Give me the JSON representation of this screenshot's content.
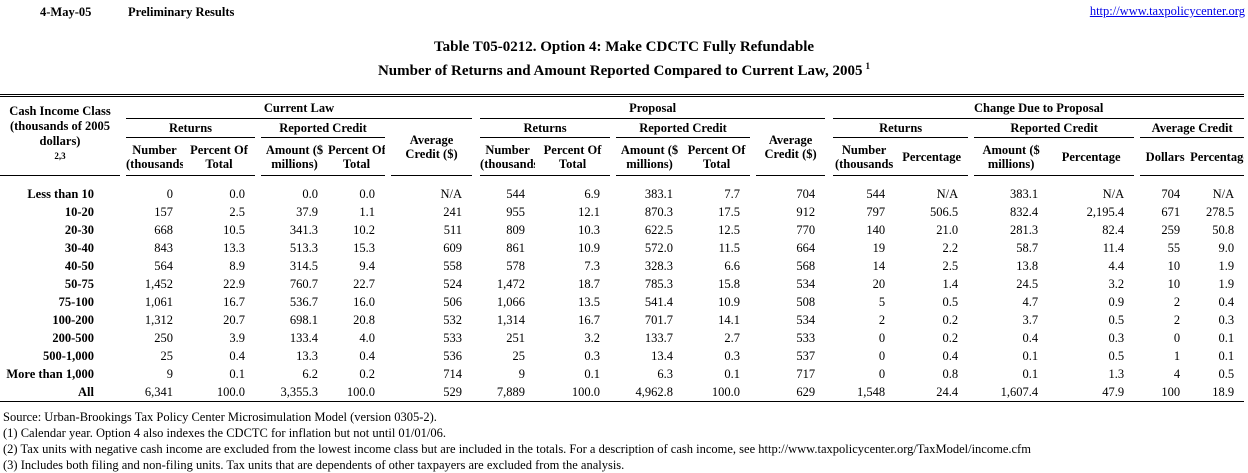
{
  "header": {
    "date": "4-May-05",
    "status": "Preliminary Results",
    "url": "http://www.taxpolicycenter.org",
    "link_color": "#0000e6"
  },
  "title": {
    "line1": "Table T05-0212. Option 4: Make CDCTC Fully Refundable",
    "line2": "Number of Returns and Amount Reported Compared to Current Law, 2005",
    "line2_sup": "1"
  },
  "table": {
    "corner": {
      "l1": "Cash Income Class",
      "l2": "(thousands of 2005",
      "l3": "dollars)",
      "sup": "2,3"
    },
    "groups": [
      {
        "name": "Current Law"
      },
      {
        "name": "Proposal"
      },
      {
        "name": "Change Due to Proposal"
      }
    ],
    "labels": {
      "returns": "Returns",
      "reported_credit": "Reported Credit",
      "average_l1": "Average",
      "average_l2": "Credit ($)",
      "average_change": "Average Credit"
    },
    "cols": {
      "number_l1": "Number",
      "number_l2": "(thousands",
      "pct_of_l1": "Percent Of",
      "pct_of_l2": "Total",
      "amount_l1": "Amount ($",
      "amount_l2": "millions)",
      "percentage": "Percentage",
      "dollars": "Dollars"
    },
    "rows": [
      {
        "label": "Less than 10",
        "values": [
          "0",
          "0.0",
          "0.0",
          "0.0",
          "N/A",
          "544",
          "6.9",
          "383.1",
          "7.7",
          "704",
          "544",
          "N/A",
          "383.1",
          "N/A",
          "704",
          "N/A"
        ]
      },
      {
        "label": "10-20",
        "values": [
          "157",
          "2.5",
          "37.9",
          "1.1",
          "241",
          "955",
          "12.1",
          "870.3",
          "17.5",
          "912",
          "797",
          "506.5",
          "832.4",
          "2,195.4",
          "671",
          "278.5"
        ]
      },
      {
        "label": "20-30",
        "values": [
          "668",
          "10.5",
          "341.3",
          "10.2",
          "511",
          "809",
          "10.3",
          "622.5",
          "12.5",
          "770",
          "140",
          "21.0",
          "281.3",
          "82.4",
          "259",
          "50.8"
        ]
      },
      {
        "label": "30-40",
        "values": [
          "843",
          "13.3",
          "513.3",
          "15.3",
          "609",
          "861",
          "10.9",
          "572.0",
          "11.5",
          "664",
          "19",
          "2.2",
          "58.7",
          "11.4",
          "55",
          "9.0"
        ]
      },
      {
        "label": "40-50",
        "values": [
          "564",
          "8.9",
          "314.5",
          "9.4",
          "558",
          "578",
          "7.3",
          "328.3",
          "6.6",
          "568",
          "14",
          "2.5",
          "13.8",
          "4.4",
          "10",
          "1.9"
        ]
      },
      {
        "label": "50-75",
        "values": [
          "1,452",
          "22.9",
          "760.7",
          "22.7",
          "524",
          "1,472",
          "18.7",
          "785.3",
          "15.8",
          "534",
          "20",
          "1.4",
          "24.5",
          "3.2",
          "10",
          "1.9"
        ]
      },
      {
        "label": "75-100",
        "values": [
          "1,061",
          "16.7",
          "536.7",
          "16.0",
          "506",
          "1,066",
          "13.5",
          "541.4",
          "10.9",
          "508",
          "5",
          "0.5",
          "4.7",
          "0.9",
          "2",
          "0.4"
        ]
      },
      {
        "label": "100-200",
        "values": [
          "1,312",
          "20.7",
          "698.1",
          "20.8",
          "532",
          "1,314",
          "16.7",
          "701.7",
          "14.1",
          "534",
          "2",
          "0.2",
          "3.7",
          "0.5",
          "2",
          "0.3"
        ]
      },
      {
        "label": "200-500",
        "values": [
          "250",
          "3.9",
          "133.4",
          "4.0",
          "533",
          "251",
          "3.2",
          "133.7",
          "2.7",
          "533",
          "0",
          "0.2",
          "0.4",
          "0.3",
          "0",
          "0.1"
        ]
      },
      {
        "label": "500-1,000",
        "values": [
          "25",
          "0.4",
          "13.3",
          "0.4",
          "536",
          "25",
          "0.3",
          "13.4",
          "0.3",
          "537",
          "0",
          "0.4",
          "0.1",
          "0.5",
          "1",
          "0.1"
        ]
      },
      {
        "label": "More than 1,000",
        "values": [
          "9",
          "0.1",
          "6.2",
          "0.2",
          "714",
          "9",
          "0.1",
          "6.3",
          "0.1",
          "717",
          "0",
          "0.8",
          "0.1",
          "1.3",
          "4",
          "0.5"
        ]
      },
      {
        "label": "All",
        "values": [
          "6,341",
          "100.0",
          "3,355.3",
          "100.0",
          "529",
          "7,889",
          "100.0",
          "4,962.8",
          "100.0",
          "629",
          "1,548",
          "24.4",
          "1,607.4",
          "47.9",
          "100",
          "18.9"
        ]
      }
    ]
  },
  "footnotes": {
    "source": "Source: Urban-Brookings Tax Policy Center Microsimulation Model (version 0305-2).",
    "n1": "(1) Calendar year. Option 4 also indexes the CDCTC for inflation but not until 01/01/06.",
    "n2": "(2) Tax units with negative cash income are excluded from the lowest income class but are included in the totals. For a description of cash income, see http://www.taxpolicycenter.org/TaxModel/income.cfm",
    "n3": "(3) Includes both filing and non-filing units.  Tax units that are dependents of other taxpayers are excluded from the analysis."
  }
}
